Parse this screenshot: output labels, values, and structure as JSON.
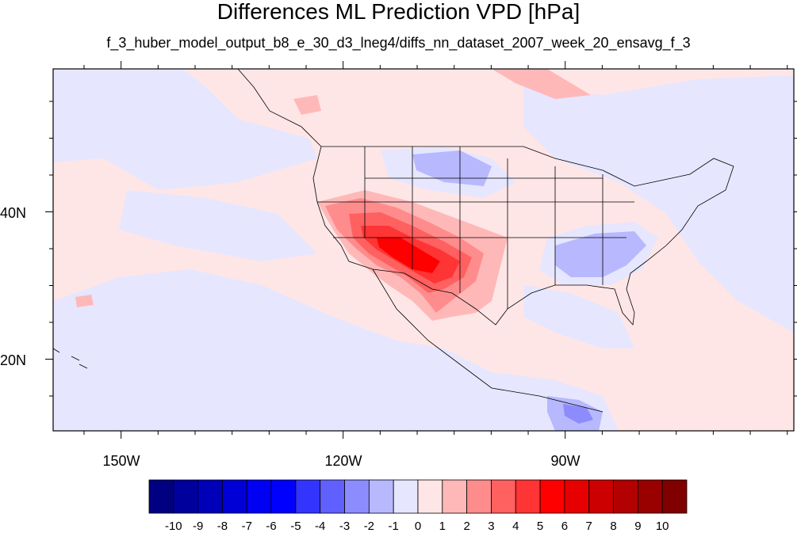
{
  "title": "Differences ML Prediction VPD [hPa]",
  "subtitle": "f_3_huber_model_output_b8_e_30_d3_lneg4/diffs_nn_dataset_2007_week_20_ensavg_f_3",
  "lat_labels": [
    "40N",
    "20N"
  ],
  "lon_labels": [
    "150W",
    "120W",
    "90W"
  ],
  "colorbar": {
    "labels": [
      "-10",
      "-9",
      "-8",
      "-7",
      "-6",
      "-5",
      "-4",
      "-3",
      "-2",
      "-1",
      "0",
      "1",
      "2",
      "3",
      "4",
      "5",
      "6",
      "7",
      "8",
      "9",
      "10"
    ],
    "colors": [
      "#000080",
      "#00009d",
      "#0000b9",
      "#0000d6",
      "#0000f2",
      "#0000ff",
      "#3434ff",
      "#6060ff",
      "#8c8cff",
      "#b8b8ff",
      "#e6e6ff",
      "#ffe6e6",
      "#ffb8b8",
      "#ff8c8c",
      "#ff6060",
      "#ff3434",
      "#ff0000",
      "#e60000",
      "#cc0000",
      "#b30000",
      "#990000",
      "#800000"
    ]
  },
  "map_colors": {
    "neg_1": "#e6e6ff",
    "neg_2": "#b8b8ff",
    "neg_3": "#8c8cff",
    "pos_1": "#ffe6e6",
    "pos_2": "#ffb8b8",
    "pos_3": "#ff8c8c",
    "pos_4": "#ff6060",
    "pos_5": "#ff3434",
    "pos_6": "#ff0000"
  }
}
